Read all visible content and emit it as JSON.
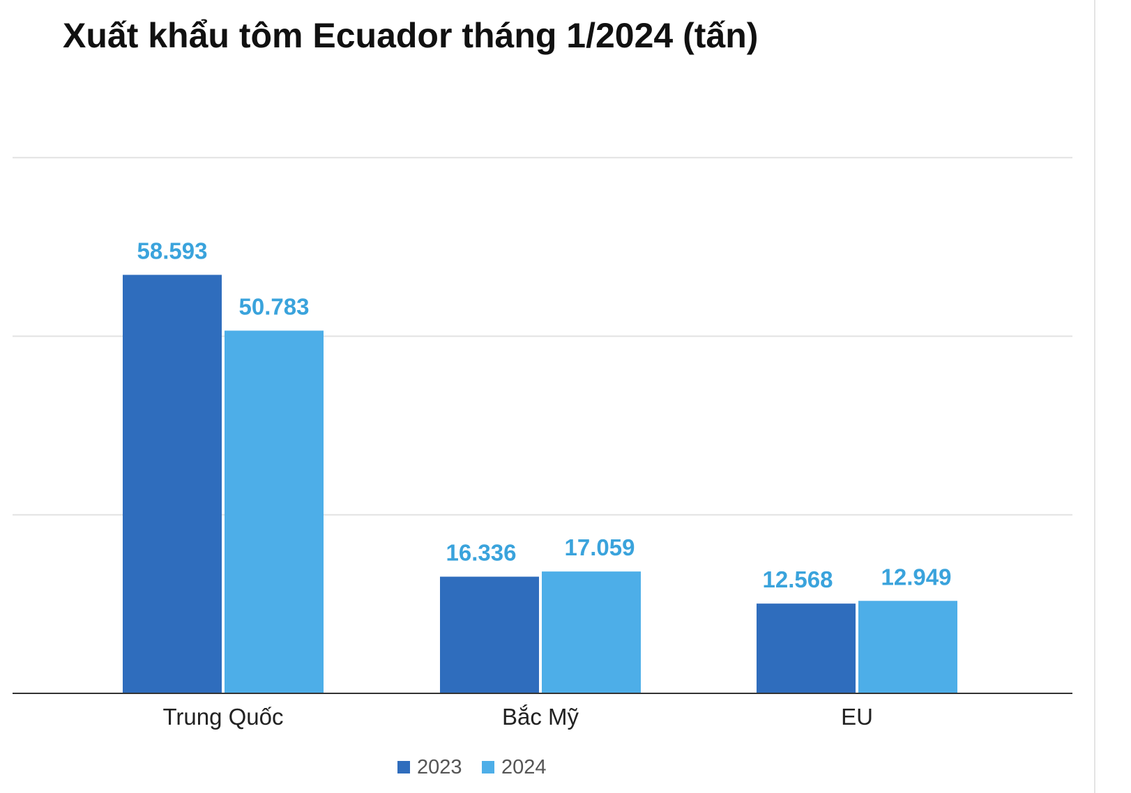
{
  "chart_data": {
    "type": "bar",
    "title": "Xuất khẩu tôm Ecuador tháng 1/2024 (tấn)",
    "categories": [
      "Trung Quốc",
      "Bắc Mỹ",
      "EU"
    ],
    "series": [
      {
        "name": "2023",
        "values": [
          58593,
          16336,
          12568
        ],
        "labels": [
          "58.593",
          "16.336",
          "12.568"
        ],
        "color": "#2f6dbd"
      },
      {
        "name": "2024",
        "values": [
          50783,
          17059,
          12949
        ],
        "labels": [
          "50.783",
          "17.059",
          "12.949"
        ],
        "color": "#4daee8"
      }
    ],
    "ylim": [
      0,
      60000
    ],
    "grid": true,
    "legend": "bottom-center",
    "label_color": "#3aa3dc"
  }
}
